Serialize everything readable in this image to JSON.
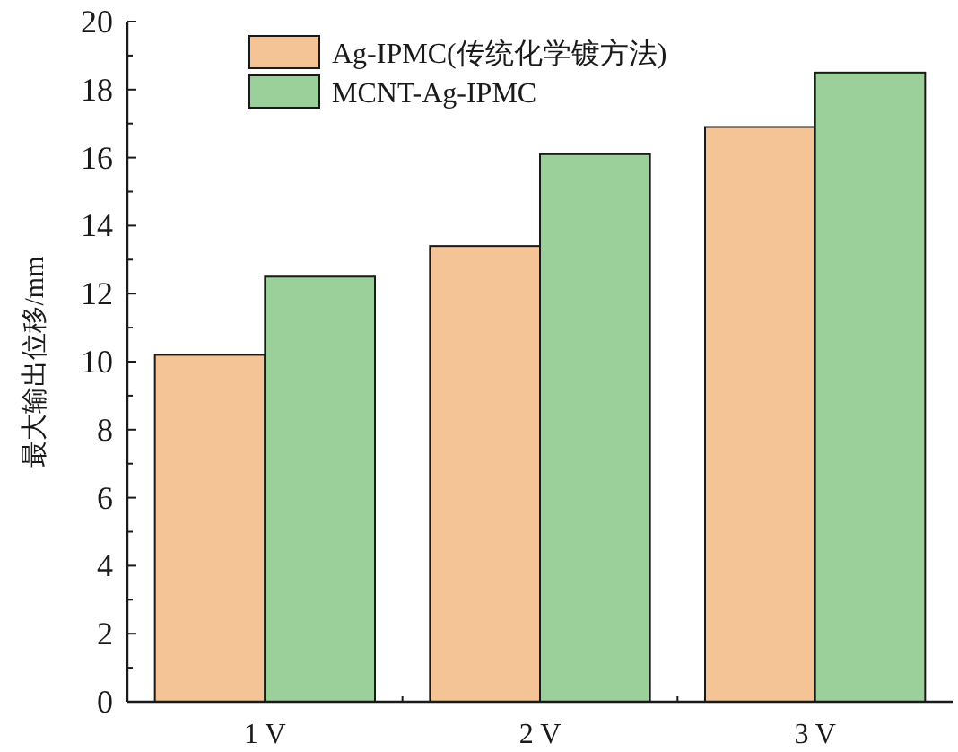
{
  "chart_data": {
    "type": "bar",
    "ylabel": "最大输出位移/mm",
    "categories": [
      "1 V",
      "2 V",
      "3 V"
    ],
    "series": [
      {
        "name": "Ag-IPMC(传统化学镀方法)",
        "color": "#f4c496",
        "values": [
          10.2,
          13.4,
          16.9
        ]
      },
      {
        "name": "MCNT-Ag-IPMC",
        "color": "#9bd09a",
        "values": [
          12.5,
          16.1,
          18.5
        ]
      }
    ],
    "ylim": [
      0,
      20
    ],
    "yticks": [
      0,
      2,
      4,
      6,
      8,
      10,
      12,
      14,
      16,
      18,
      20
    ],
    "legend": "top left",
    "grid": false
  }
}
